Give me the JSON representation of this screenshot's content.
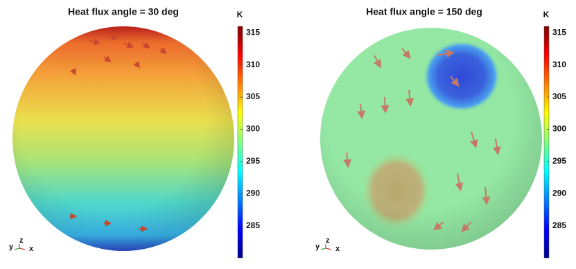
{
  "chart_data": [
    {
      "type": "surface",
      "title": "Heat flux angle = 30 deg",
      "colormap": "jet",
      "colorbar": {
        "label": "K",
        "lim": [
          280,
          316
        ],
        "ticks": [
          285,
          290,
          295,
          300,
          305,
          310,
          315
        ]
      },
      "axis_labels": [
        "y",
        "z",
        "x"
      ]
    },
    {
      "type": "surface",
      "title": "Heat flux angle = 150 deg",
      "colormap": "jet",
      "colorbar": {
        "label": "K",
        "lim": [
          280,
          316
        ],
        "ticks": [
          285,
          290,
          295,
          300,
          305,
          310,
          315
        ]
      },
      "axis_labels": [
        "y",
        "z",
        "x"
      ]
    }
  ]
}
